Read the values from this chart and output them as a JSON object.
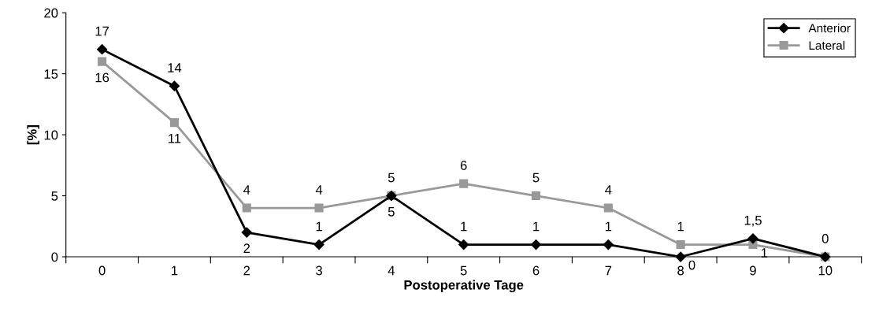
{
  "chart_data": {
    "type": "line",
    "xlabel": "Postoperative Tage",
    "ylabel": "[%]",
    "categories": [
      "0",
      "1",
      "2",
      "3",
      "4",
      "5",
      "6",
      "7",
      "8",
      "9",
      "10"
    ],
    "series": [
      {
        "name": "Anterior",
        "color": "#000000",
        "marker": "diamond",
        "values": [
          17,
          14,
          2,
          1,
          5,
          1,
          1,
          1,
          0,
          1.5,
          0
        ],
        "value_labels": [
          "17",
          "14",
          "2",
          "1",
          "5",
          "1",
          "1",
          "1",
          "0",
          "1,5",
          "0"
        ]
      },
      {
        "name": "Lateral",
        "color": "#999999",
        "marker": "square",
        "values": [
          16,
          11,
          4,
          4,
          5,
          6,
          5,
          4,
          1,
          1,
          0
        ],
        "value_labels": [
          "16",
          "11",
          "4",
          "4",
          "5",
          "6",
          "5",
          "4",
          "1",
          "1",
          null
        ]
      }
    ],
    "ylim": [
      0,
      20
    ],
    "yticks": [
      0,
      5,
      10,
      15,
      20
    ],
    "grid": false,
    "legend": "top right",
    "line_style": "solid"
  }
}
